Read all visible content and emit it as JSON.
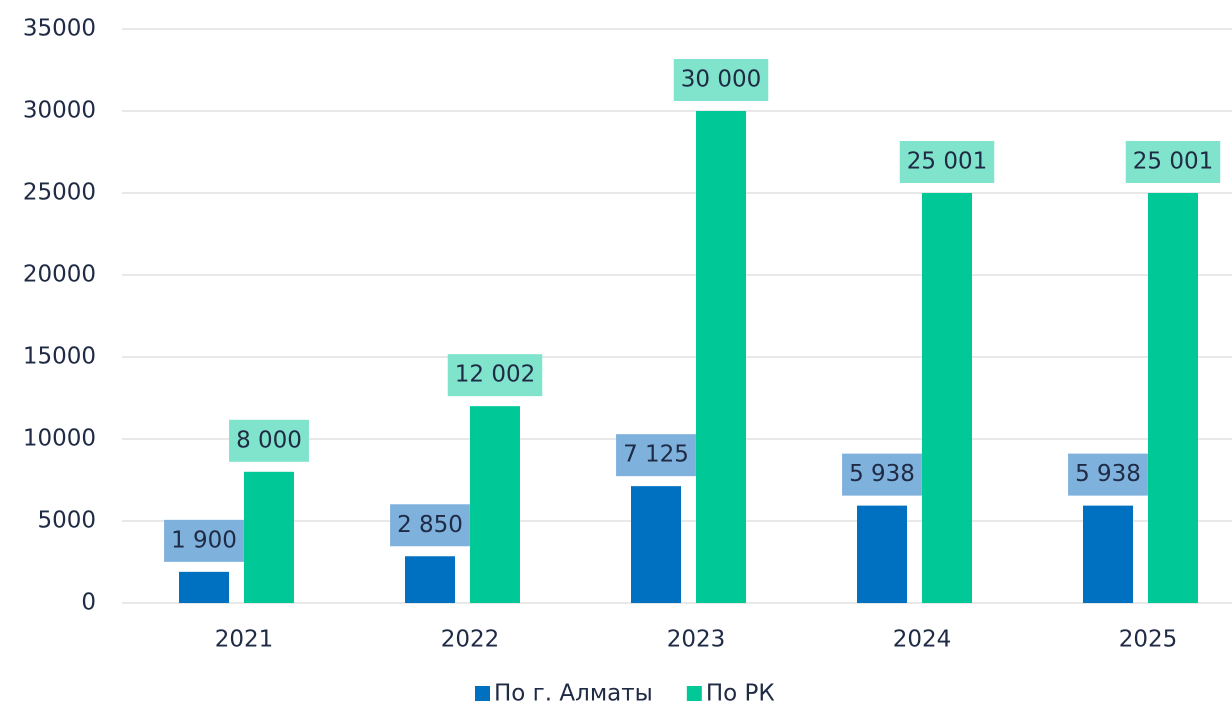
{
  "chart_data": {
    "type": "bar",
    "categories": [
      "2021",
      "2022",
      "2023",
      "2024",
      "2025"
    ],
    "series": [
      {
        "name": "По г. Алматы",
        "color": "#0070c0",
        "label_bg": "#7fb1dd",
        "values": [
          1900,
          2850,
          7125,
          5938,
          5938
        ],
        "value_labels": [
          "1 900",
          "2 850",
          "7 125",
          "5 938",
          "5 938"
        ]
      },
      {
        "name": "По РК",
        "color": "#00c896",
        "label_bg": "#80e3cb",
        "values": [
          8000,
          12002,
          30000,
          25001,
          25001
        ],
        "value_labels": [
          "8 000",
          "12 002",
          "30 000",
          "25 001",
          "25 001"
        ]
      }
    ],
    "ylim": [
      0,
      35000
    ],
    "yticks": [
      0,
      5000,
      10000,
      15000,
      20000,
      25000,
      30000,
      35000
    ],
    "grid": true,
    "legend": "bottom"
  }
}
